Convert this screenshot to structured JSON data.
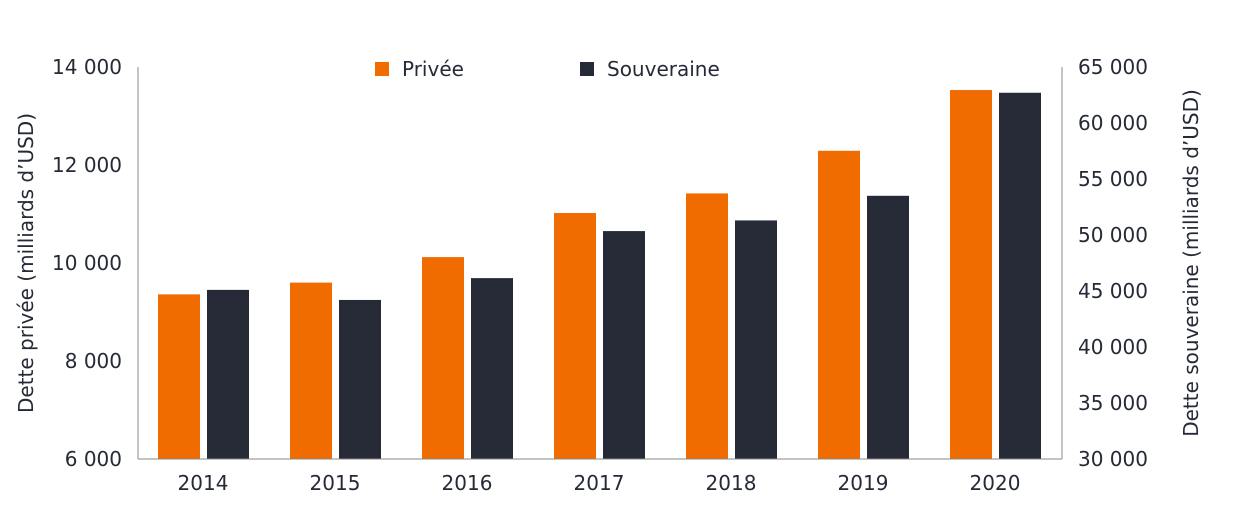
{
  "chart_data": {
    "type": "bar",
    "categories": [
      "2014",
      "2015",
      "2016",
      "2017",
      "2018",
      "2019",
      "2020"
    ],
    "series": [
      {
        "name": "Privée",
        "axis": "left",
        "color": "#F06C00",
        "values": [
          9360,
          9600,
          10120,
          11020,
          11420,
          12290,
          13530
        ]
      },
      {
        "name": "Souveraine",
        "axis": "right",
        "color": "#252A36",
        "values": [
          45100,
          44200,
          46150,
          50350,
          51300,
          53500,
          62700
        ]
      }
    ],
    "ylabel_left": "Dette privée (milliards d’USD)",
    "ylabel_right": "Dette souveraine (milliards d’USD)",
    "ylim_left": [
      6000,
      14000
    ],
    "ylim_right": [
      30000,
      65000
    ],
    "yticks_left": [
      "6 000",
      "8 000",
      "10 000",
      "12 000",
      "14 000"
    ],
    "yticks_right": [
      "30 000",
      "35 000",
      "40 000",
      "45 000",
      "50 000",
      "55 000",
      "60 000",
      "65 000"
    ],
    "legend_placement": "top-center",
    "grid": false
  }
}
